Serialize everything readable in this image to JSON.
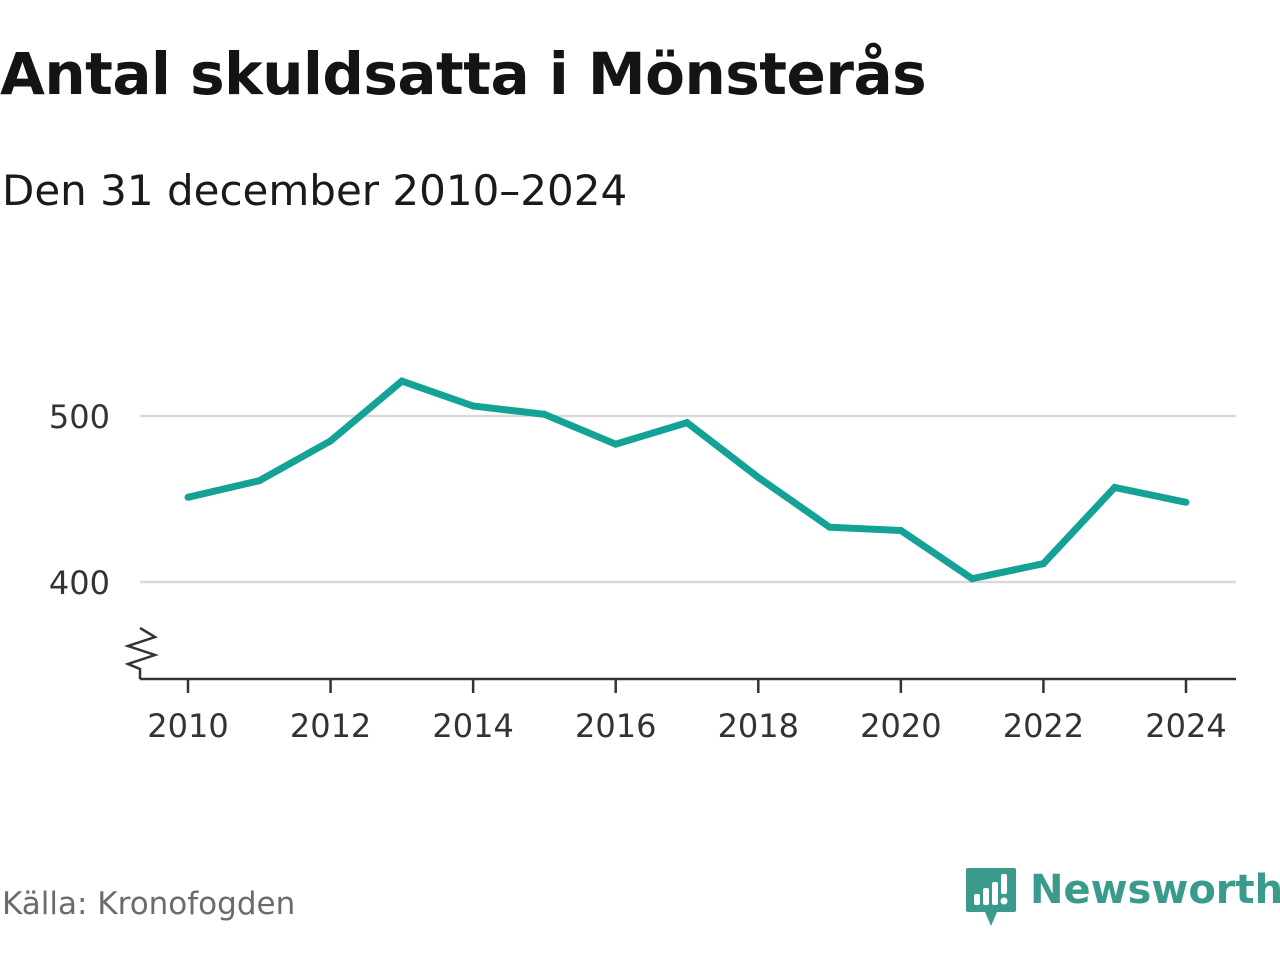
{
  "header": {
    "title": "Antal skuldsatta i Mönsterås",
    "subtitle": "Den 31 december 2010–2024"
  },
  "footer": {
    "source": "Källa: Kronofogden",
    "brand": "Newsworthy"
  },
  "colors": {
    "line": "#14a196",
    "grid": "#d9d9d9",
    "axis": "#333333",
    "brand": "#3a9b8c"
  },
  "icons": {
    "brand_logo": "newsworthy-logo-icon",
    "axis_break": "axis-break-icon"
  },
  "chart_data": {
    "type": "line",
    "x": [
      2010,
      2011,
      2012,
      2013,
      2014,
      2015,
      2016,
      2017,
      2018,
      2019,
      2020,
      2021,
      2022,
      2023,
      2024
    ],
    "series": [
      {
        "values": [
          451,
          461,
          485,
          521,
          506,
          501,
          483,
          496,
          463,
          433,
          431,
          402,
          411,
          457,
          448
        ]
      }
    ],
    "x_ticks": [
      "2010",
      "2012",
      "2014",
      "2016",
      "2018",
      "2020",
      "2022",
      "2024"
    ],
    "y_ticks": [
      "400",
      "500"
    ],
    "ylim": [
      343,
      529
    ],
    "grid": "horizontal",
    "axis_break": true,
    "title": "Antal skuldsatta i Mönsterås",
    "subtitle": "Den 31 december 2010–2024",
    "xlabel": "",
    "ylabel": ""
  }
}
